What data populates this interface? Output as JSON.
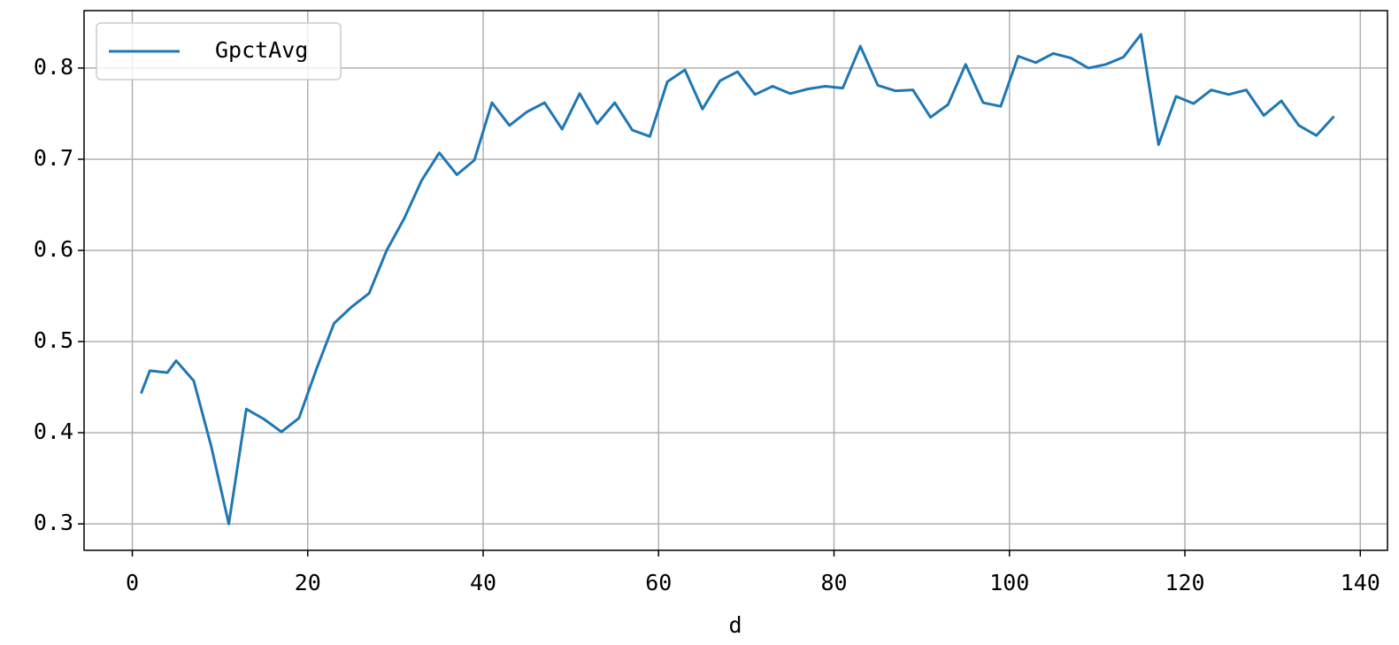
{
  "chart_data": {
    "type": "line",
    "x_label": "d",
    "x": [
      1,
      2,
      4,
      5,
      7,
      9,
      11,
      13,
      15,
      17,
      19,
      21,
      23,
      25,
      27,
      29,
      31,
      33,
      35,
      37,
      39,
      41,
      43,
      45,
      47,
      49,
      51,
      53,
      55,
      57,
      59,
      61,
      63,
      65,
      67,
      69,
      71,
      73,
      75,
      77,
      79,
      81,
      83,
      85,
      87,
      89,
      91,
      93,
      95,
      97,
      99,
      101,
      103,
      105,
      107,
      109,
      111,
      113,
      115,
      117,
      119,
      121,
      123,
      125,
      127,
      129,
      131,
      133,
      135,
      137
    ],
    "series": [
      {
        "name": "GpctAvg",
        "color": "#1f77b4",
        "values": [
          0.443,
          0.468,
          0.466,
          0.479,
          0.457,
          0.385,
          0.3,
          0.426,
          0.415,
          0.401,
          0.416,
          0.47,
          0.52,
          0.538,
          0.553,
          0.6,
          0.635,
          0.677,
          0.707,
          0.683,
          0.699,
          0.762,
          0.737,
          0.752,
          0.762,
          0.733,
          0.772,
          0.739,
          0.762,
          0.732,
          0.725,
          0.785,
          0.798,
          0.755,
          0.786,
          0.796,
          0.771,
          0.78,
          0.772,
          0.777,
          0.78,
          0.778,
          0.824,
          0.781,
          0.775,
          0.776,
          0.746,
          0.76,
          0.804,
          0.762,
          0.758,
          0.813,
          0.806,
          0.816,
          0.811,
          0.8,
          0.804,
          0.812,
          0.837,
          0.716,
          0.769,
          0.761,
          0.776,
          0.771,
          0.776,
          0.748,
          0.764,
          0.737,
          0.726,
          0.747
        ]
      }
    ],
    "xlim": [
      -5.5,
      143.1
    ],
    "xticks": [
      0,
      20,
      40,
      60,
      80,
      100,
      120,
      140
    ],
    "ylim": [
      0.271,
      0.863
    ],
    "yticks": [
      0.3,
      0.4,
      0.5,
      0.6,
      0.7,
      0.8
    ],
    "grid": true,
    "legend": "upper-left"
  }
}
